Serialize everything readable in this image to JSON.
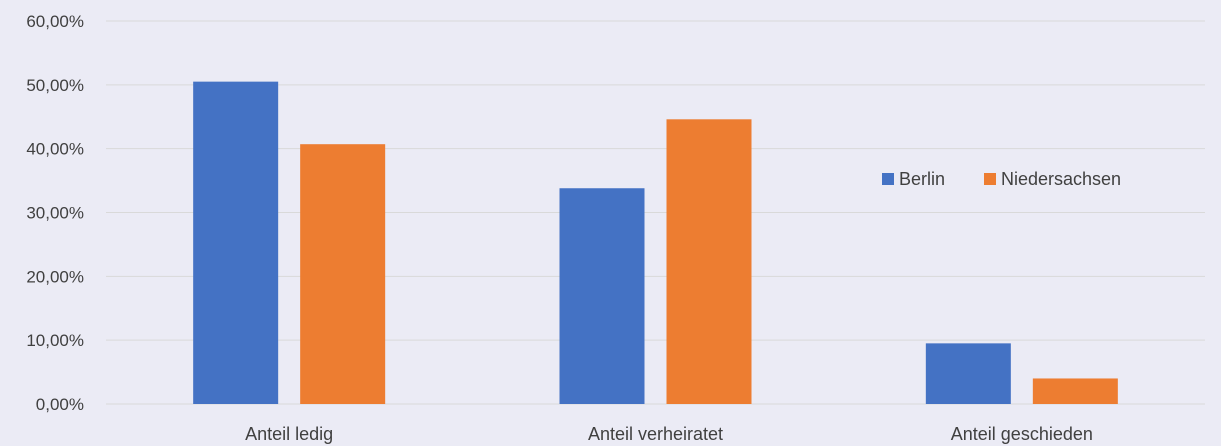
{
  "chart_data": {
    "type": "bar",
    "title": "",
    "xlabel": "",
    "ylabel": "",
    "categories": [
      "Anteil ledig",
      "Anteil verheiratet",
      "Anteil geschieden"
    ],
    "series": [
      {
        "name": "Berlin",
        "color": "#4472c4",
        "values": [
          50.5,
          33.8,
          9.5
        ]
      },
      {
        "name": "Niedersachsen",
        "color": "#ed7d31",
        "values": [
          40.7,
          44.6,
          4.0
        ]
      }
    ],
    "ylim": [
      0,
      60
    ],
    "yticks": [
      0,
      10,
      20,
      30,
      40,
      50,
      60
    ],
    "ytick_labels": [
      "0,00%",
      "10,00%",
      "20,00%",
      "30,00%",
      "40,00%",
      "50,00%",
      "60,00%"
    ],
    "grid": true,
    "legend_position": "right",
    "background_color": "#ebebf5",
    "gridline_color": "#d9d9d9"
  }
}
